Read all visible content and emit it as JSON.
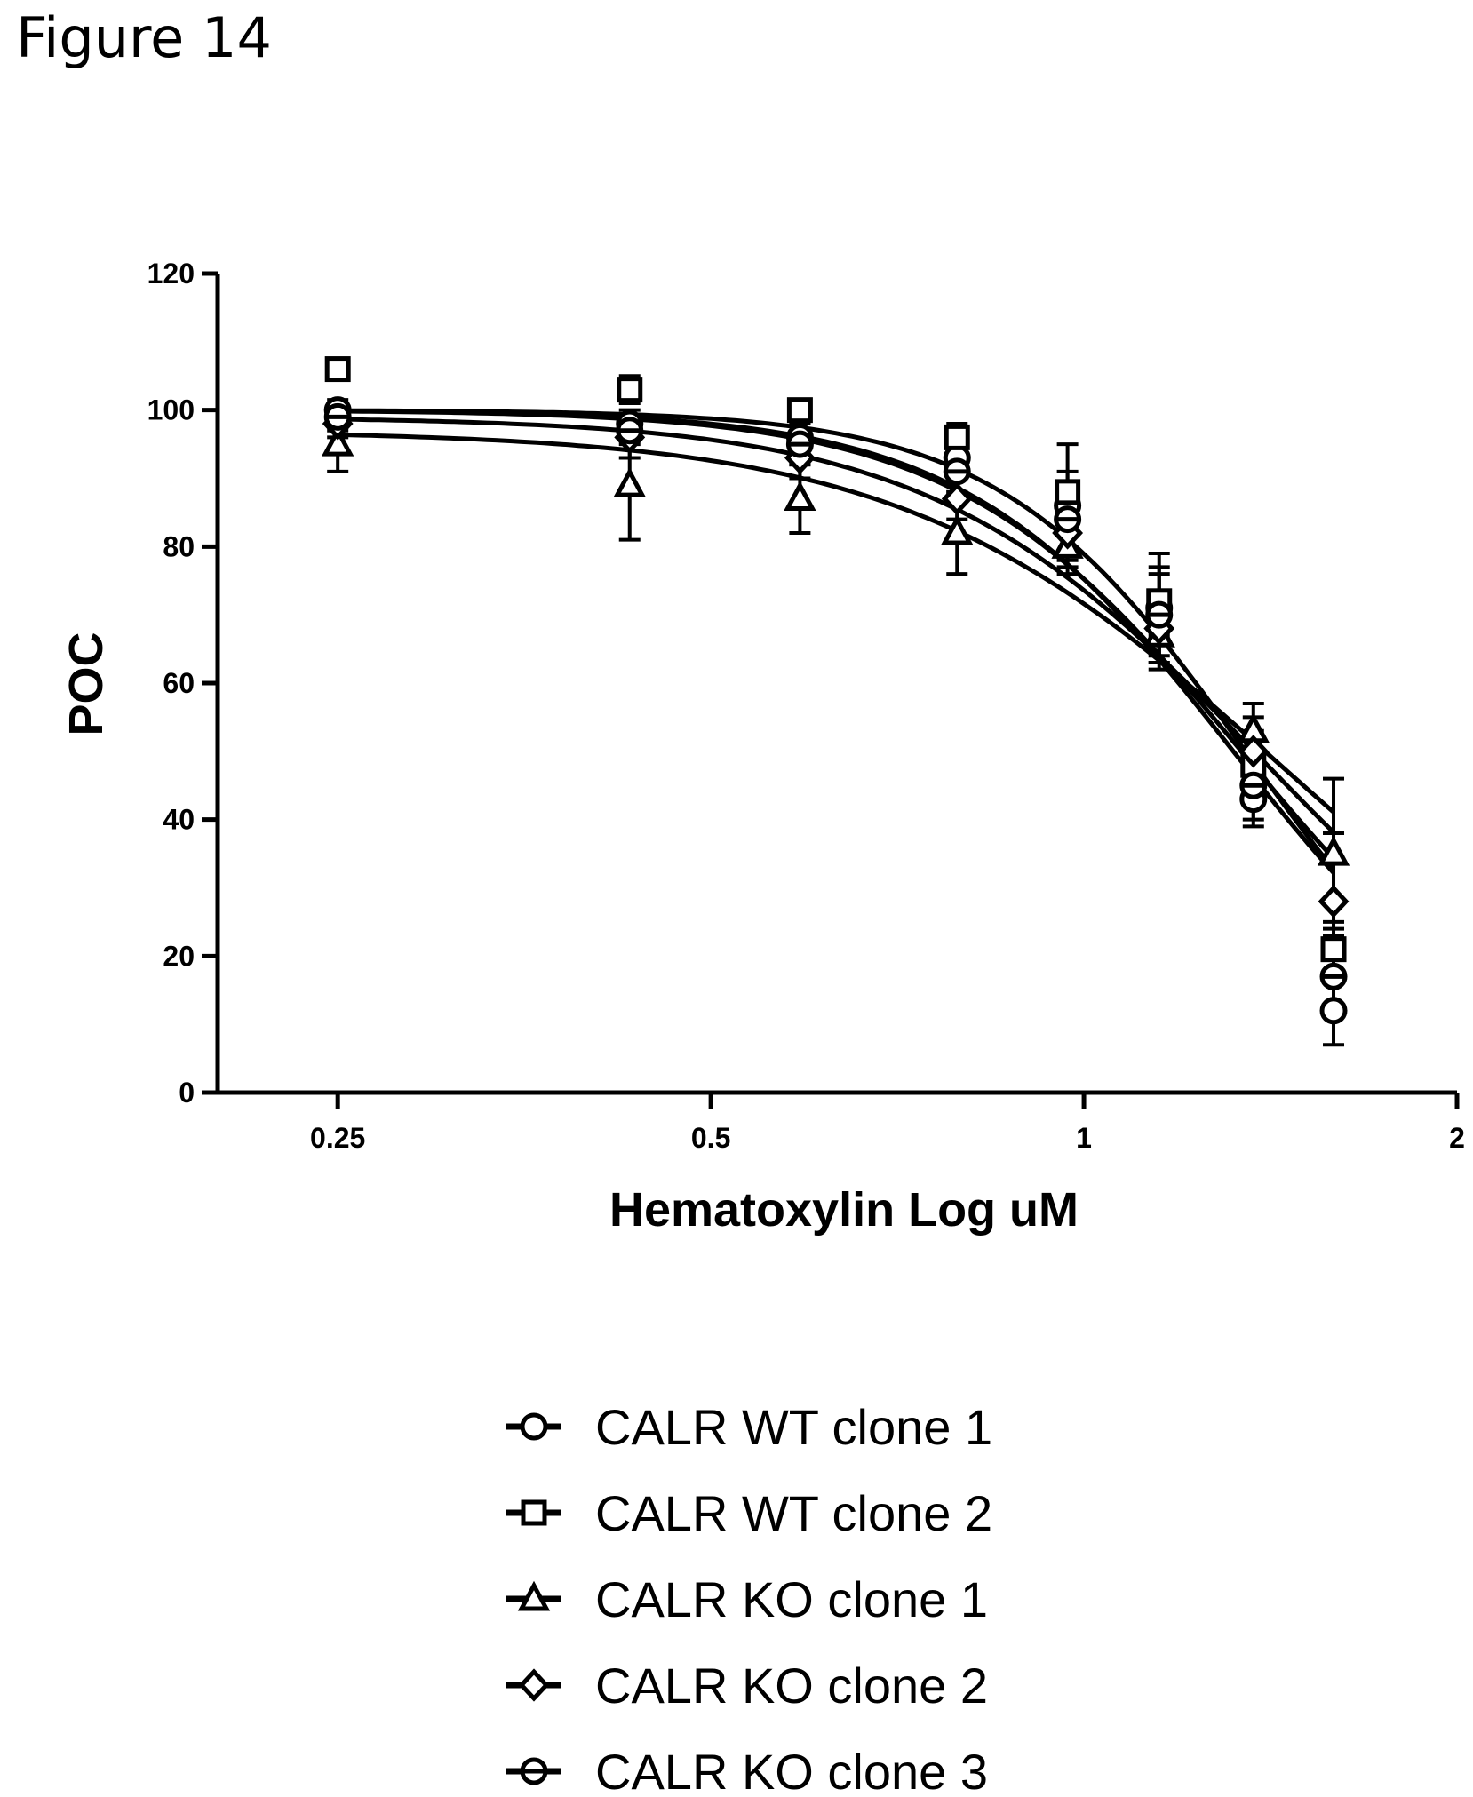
{
  "figure": {
    "title": "Figure 14"
  },
  "chart_data": {
    "type": "line",
    "xlabel": "Hematoxylin Log uM",
    "ylabel": "POC",
    "xscale": "log2",
    "xlim": [
      0.2,
      2
    ],
    "ylim": [
      0,
      120
    ],
    "xticks": [
      0.25,
      0.5,
      1,
      2
    ],
    "xtick_labels": [
      "0.25",
      "0.5",
      "1",
      "2"
    ],
    "yticks": [
      0,
      20,
      40,
      60,
      80,
      100,
      120
    ],
    "ytick_labels": [
      "0",
      "20",
      "40",
      "60",
      "80",
      "100",
      "120"
    ],
    "x": [
      0.25,
      0.43,
      0.59,
      0.79,
      0.97,
      1.15,
      1.37,
      1.59
    ],
    "legend_position": "bottom",
    "series": [
      {
        "name": "CALR WT clone 1",
        "marker": "circle",
        "values": [
          100,
          98,
          96,
          93,
          86,
          71,
          43,
          12
        ],
        "errors": [
          1.5,
          2,
          2,
          3,
          9,
          8,
          4,
          5
        ],
        "fit": {
          "top": 100,
          "ec50": 1.32,
          "hill": 4.0
        }
      },
      {
        "name": "CALR WT clone 2",
        "marker": "square",
        "values": [
          106,
          103,
          100,
          96,
          88,
          72,
          48,
          21
        ],
        "errors": [
          1.5,
          2,
          1.5,
          2,
          3,
          5,
          5,
          4
        ],
        "fit": {
          "top": 100,
          "ec50": 1.35,
          "hill": 4.4
        }
      },
      {
        "name": "CALR KO clone 1",
        "marker": "triangle",
        "values": [
          95,
          89,
          87,
          82,
          80,
          67,
          53,
          35
        ],
        "errors": [
          4,
          8,
          5,
          6,
          4,
          5,
          4,
          11
        ],
        "fit": {
          "top": 97,
          "ec50": 1.43,
          "hill": 2.9
        }
      },
      {
        "name": "CALR KO clone 2",
        "marker": "diamond",
        "values": [
          98,
          96,
          93,
          87,
          82,
          68,
          50,
          28
        ],
        "errors": [
          2,
          3,
          3,
          3,
          4,
          5,
          5,
          10
        ],
        "fit": {
          "top": 99,
          "ec50": 1.38,
          "hill": 3.3
        }
      },
      {
        "name": "CALR KO clone 3",
        "marker": "circle-bar",
        "values": [
          99,
          97,
          95,
          91,
          84,
          70,
          45,
          17
        ],
        "errors": [
          2,
          2,
          3,
          3,
          5,
          6,
          5,
          6
        ],
        "fit": {
          "top": 100,
          "ec50": 1.34,
          "hill": 3.8
        }
      }
    ]
  }
}
